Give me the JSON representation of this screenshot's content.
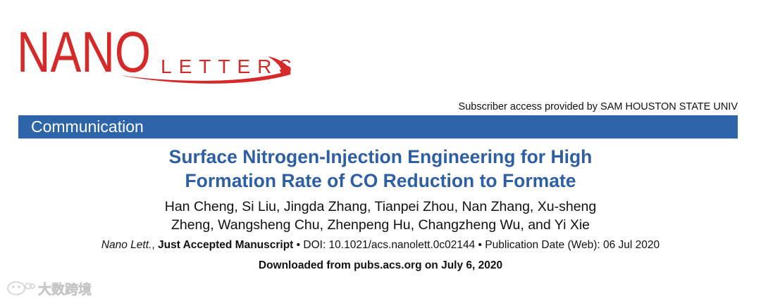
{
  "logo": {
    "main_text": "NANO",
    "sub_text": "LETTERS",
    "brand_color": "#d42a2a"
  },
  "header": {
    "subscriber_access": "Subscriber access provided by SAM HOUSTON STATE UNIV"
  },
  "banner": {
    "label": "Communication",
    "color": "#2e64a9"
  },
  "article": {
    "title_line1": "Surface Nitrogen-Injection Engineering for High",
    "title_line2": "Formation Rate of CO Reduction to Formate",
    "title_color": "#2f5fa3",
    "authors_line1": "Han Cheng, Si Liu, Jingda Zhang, Tianpei Zhou, Nan Zhang, Xu-sheng",
    "authors_line2": "Zheng, Wangsheng Chu, Zhenpeng Hu, Changzheng Wu, and Yi Xie",
    "journal": "Nano Lett.",
    "separator1": ", ",
    "status": "Just Accepted Manuscript",
    "doi": " • DOI: 10.1021/acs.nanolett.0c02144 • Publication Date (Web): 06 Jul 2020",
    "downloaded": "Downloaded from pubs.acs.org on July 6, 2020"
  },
  "watermark": {
    "text": "大数跨境",
    "icon": "wechat-logo-icon"
  }
}
